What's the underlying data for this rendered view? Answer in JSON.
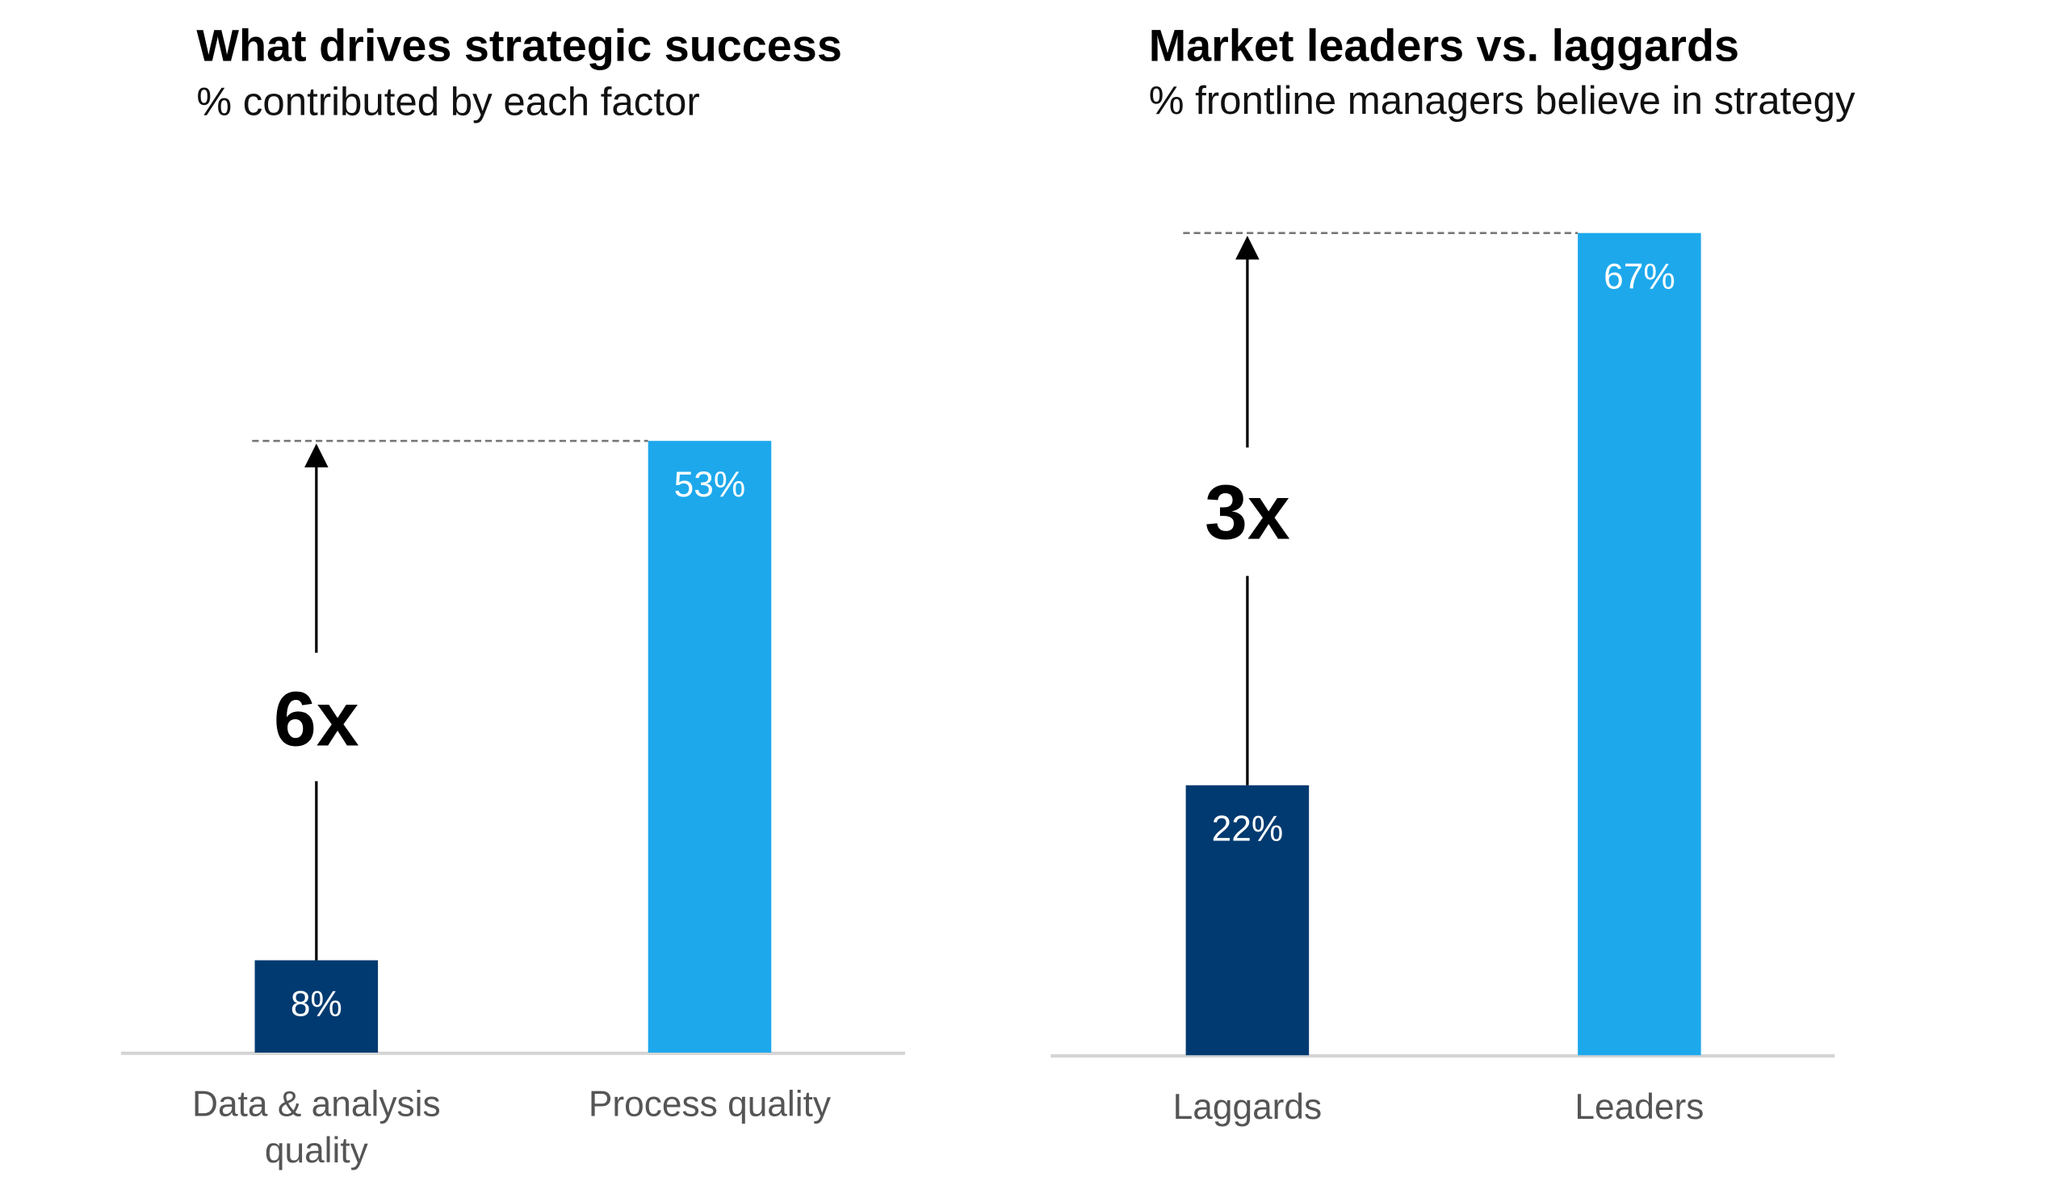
{
  "colors": {
    "dark": "#003A70",
    "light": "#1DA8EC",
    "axis": "#d4d4d4",
    "dash": "#777777"
  },
  "chart_data": [
    {
      "type": "bar",
      "title": "What drives strategic success",
      "subtitle": "% contributed by each factor",
      "categories": [
        "Data & analysis quality",
        "Process quality"
      ],
      "category_lines": [
        [
          "Data & analysis",
          "quality"
        ],
        [
          "Process quality"
        ]
      ],
      "values": [
        8,
        53
      ],
      "value_labels": [
        "8%",
        "53%"
      ],
      "annotation": "6x",
      "ylim": [
        0,
        55
      ]
    },
    {
      "type": "bar",
      "title": "Market leaders vs. laggards",
      "subtitle": "% frontline managers believe in strategy",
      "categories": [
        "Laggards",
        "Leaders"
      ],
      "category_lines": [
        [
          "Laggards"
        ],
        [
          "Leaders"
        ]
      ],
      "values": [
        22,
        67
      ],
      "value_labels": [
        "22%",
        "67%"
      ],
      "annotation": "3x",
      "ylim": [
        0,
        67
      ]
    }
  ]
}
